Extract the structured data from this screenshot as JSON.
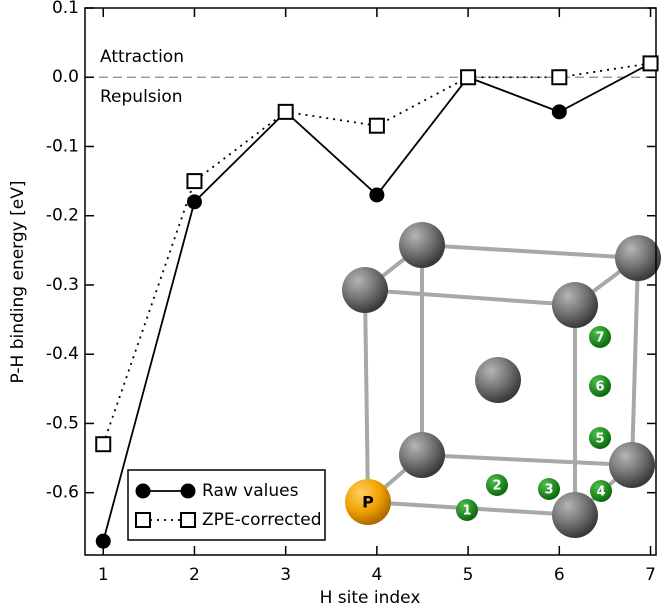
{
  "chart_data": {
    "type": "line",
    "x_label": "H site index",
    "y_label": "P-H binding energy [eV]",
    "x": [
      1,
      2,
      3,
      4,
      5,
      6,
      7
    ],
    "series": [
      {
        "name": "Raw values",
        "color": "#000000",
        "line_style": "solid",
        "marker": "circle",
        "values": [
          -0.67,
          -0.18,
          -0.05,
          -0.17,
          0.0,
          -0.05,
          0.02
        ]
      },
      {
        "name": "ZPE-corrected",
        "color": "#000000",
        "line_style": "dotted",
        "marker": "square",
        "values": [
          -0.53,
          -0.15,
          -0.05,
          -0.07,
          0.0,
          0.0,
          0.02
        ]
      }
    ],
    "xlim": [
      0.8,
      7.06
    ],
    "ylim": [
      -0.69,
      0.1
    ],
    "xticks": [
      1,
      2,
      3,
      4,
      5,
      6,
      7
    ],
    "yticks": [
      0.1,
      {
        "value": 0,
        "label": "0.0"
      },
      -0.1,
      -0.2,
      -0.3,
      -0.4,
      -0.5,
      -0.6
    ],
    "reference_line": {
      "value": 0,
      "above_label": "Attraction",
      "below_label": "Repulsion"
    },
    "legend": "lower left",
    "grid": false,
    "inset": {
      "center_atom_label": "P",
      "site_labels": [
        "1",
        "2",
        "3",
        "4",
        "5",
        "6",
        "7"
      ]
    }
  }
}
